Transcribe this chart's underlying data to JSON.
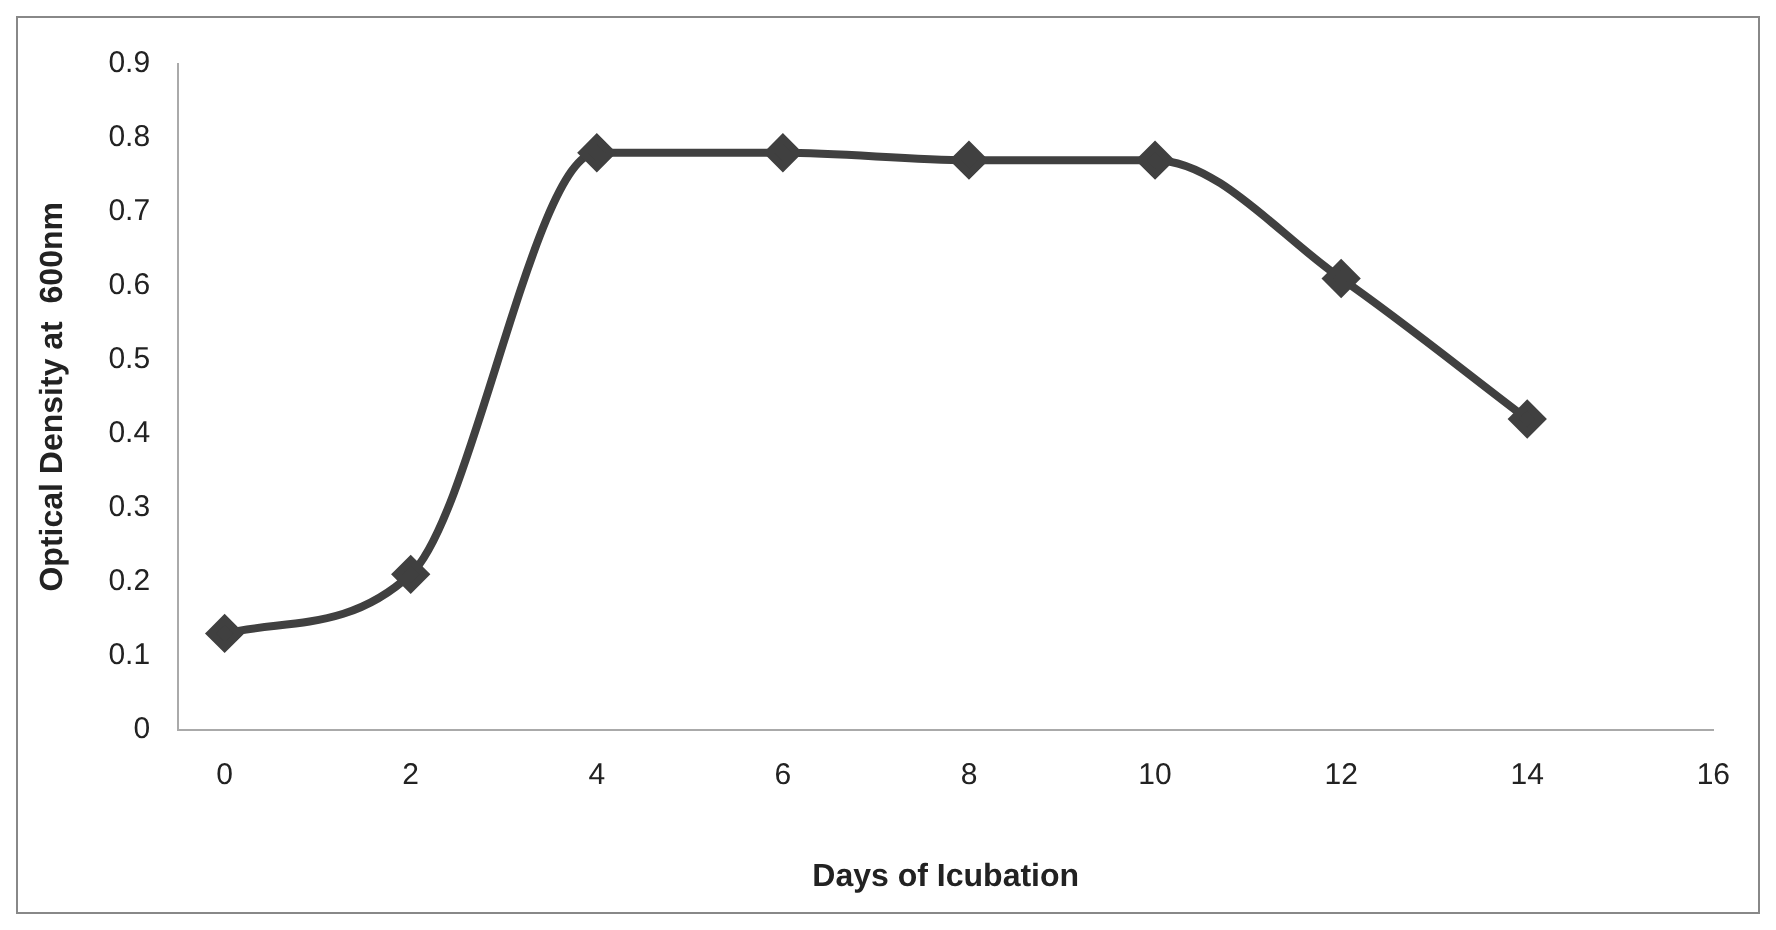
{
  "chart_data": {
    "type": "line",
    "xlabel": "Days of Icubation",
    "ylabel": "Optical Density at  600nm",
    "x": [
      0,
      2,
      4,
      6,
      8,
      10,
      12,
      14
    ],
    "series": [
      {
        "color": "#404040",
        "values": [
          0.13,
          0.21,
          0.78,
          0.78,
          0.77,
          0.77,
          0.61,
          0.42
        ]
      }
    ],
    "xlim": [
      -0.5,
      16
    ],
    "xticks": [
      0,
      2,
      4,
      6,
      8,
      10,
      12,
      14,
      16
    ],
    "ylim": [
      0,
      0.9
    ],
    "yticks": [
      0,
      0.1,
      0.2,
      0.3,
      0.4,
      0.5,
      0.6,
      0.7,
      0.8,
      0.9
    ],
    "grid": false,
    "legend": false,
    "marker": "diamond",
    "line_style": "solid"
  }
}
